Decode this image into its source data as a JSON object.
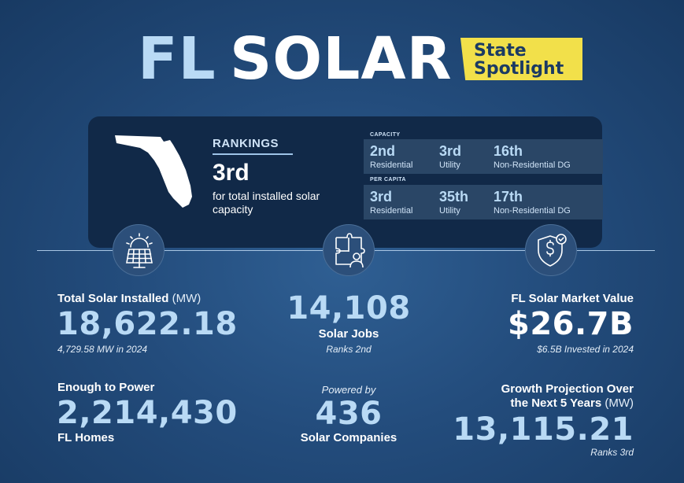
{
  "header": {
    "title_state": "FL",
    "title_word": "SOLAR",
    "badge_line1": "State",
    "badge_line2": "Spotlight"
  },
  "rankings": {
    "heading": "RANKINGS",
    "overall_rank": "3rd",
    "overall_desc": "for total installed solar capacity",
    "capacity_label": "CAPACITY",
    "capacity": [
      {
        "rank": "2nd",
        "label": "Residential"
      },
      {
        "rank": "3rd",
        "label": "Utility"
      },
      {
        "rank": "16th",
        "label": "Non-Residential DG"
      }
    ],
    "per_capita_label": "PER CAPITA",
    "per_capita": [
      {
        "rank": "3rd",
        "label": "Residential"
      },
      {
        "rank": "35th",
        "label": "Utility"
      },
      {
        "rank": "17th",
        "label": "Non-Residential DG"
      }
    ]
  },
  "stats": {
    "installed_label": "Total Solar Installed",
    "installed_unit": "(MW)",
    "installed_value": "18,622.18",
    "installed_sub": "4,729.58 MW in 2024",
    "homes_label": "Enough to Power",
    "homes_value": "2,214,430",
    "homes_sub": "FL Homes",
    "jobs_value": "14,108",
    "jobs_label": "Solar Jobs",
    "jobs_sub": "Ranks 2nd",
    "companies_pre": "Powered by",
    "companies_value": "436",
    "companies_label": "Solar Companies",
    "market_label": "FL Solar Market Value",
    "market_value": "$26.7B",
    "market_sub": "$6.5B Invested in 2024",
    "growth_label_line1": "Growth Projection Over",
    "growth_label_line2": "the Next 5 Years",
    "growth_unit": "(MW)",
    "growth_value": "13,115.21",
    "growth_sub": "Ranks 3rd"
  },
  "icons": [
    "florida-map-icon",
    "solar-panel-icon",
    "puzzle-worker-icon",
    "dollar-shield-icon"
  ],
  "colors": {
    "accent_light_blue": "#b9daf5",
    "badge_yellow": "#f2e04a",
    "card_navy": "#112948"
  }
}
